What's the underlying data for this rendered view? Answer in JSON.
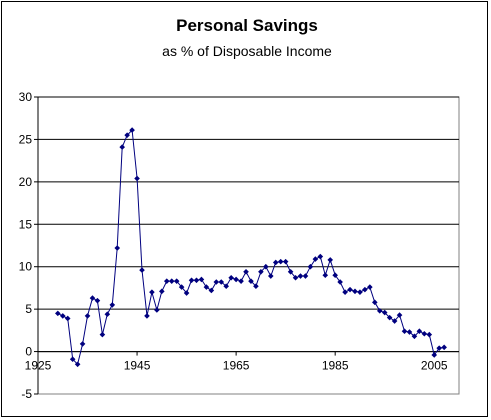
{
  "chart_data": {
    "type": "line",
    "title": "Personal Savings",
    "subtitle": "as % of Disposable Income",
    "xlabel": "",
    "ylabel": "",
    "xlim": [
      1925,
      2010
    ],
    "ylim": [
      -5,
      30
    ],
    "xticks": [
      1925,
      1945,
      1965,
      1985,
      2005
    ],
    "yticks": [
      -5,
      0,
      5,
      10,
      15,
      20,
      25,
      30
    ],
    "grid": "horizontal",
    "legend": "none",
    "colors": {
      "line": "#00007f",
      "plot_bg": "#ffffff",
      "grid": "#000000"
    },
    "series": [
      {
        "x": [
          1929,
          1930,
          1931,
          1932,
          1933,
          1934,
          1935,
          1936,
          1937,
          1938,
          1939,
          1940,
          1941,
          1942,
          1943,
          1944,
          1945,
          1946,
          1947,
          1948,
          1949,
          1950,
          1951,
          1952,
          1953,
          1954,
          1955,
          1956,
          1957,
          1958,
          1959,
          1960,
          1961,
          1962,
          1963,
          1964,
          1965,
          1966,
          1967,
          1968,
          1969,
          1970,
          1971,
          1972,
          1973,
          1974,
          1975,
          1976,
          1977,
          1978,
          1979,
          1980,
          1981,
          1982,
          1983,
          1984,
          1985,
          1986,
          1987,
          1988,
          1989,
          1990,
          1991,
          1992,
          1993,
          1994,
          1995,
          1996,
          1997,
          1998,
          1999,
          2000,
          2001,
          2002,
          2003,
          2004,
          2005,
          2006,
          2007
        ],
        "y": [
          4.5,
          4.2,
          3.9,
          -0.9,
          -1.5,
          0.9,
          4.2,
          6.3,
          6.0,
          2.0,
          4.4,
          5.5,
          12.2,
          24.1,
          25.5,
          26.1,
          20.4,
          9.6,
          4.2,
          7.0,
          4.9,
          7.1,
          8.3,
          8.3,
          8.3,
          7.6,
          6.9,
          8.4,
          8.4,
          8.5,
          7.6,
          7.2,
          8.2,
          8.2,
          7.7,
          8.7,
          8.5,
          8.3,
          9.4,
          8.3,
          7.7,
          9.4,
          10.0,
          8.9,
          10.5,
          10.6,
          10.6,
          9.4,
          8.7,
          8.9,
          8.9,
          10.0,
          10.9,
          11.2,
          9.0,
          10.8,
          9.0,
          8.2,
          7.0,
          7.3,
          7.1,
          7.0,
          7.3,
          7.6,
          5.8,
          4.8,
          4.6,
          4.0,
          3.6,
          4.3,
          2.4,
          2.3,
          1.8,
          2.4,
          2.1,
          2.0,
          -0.4,
          0.4,
          0.5
        ]
      }
    ]
  }
}
